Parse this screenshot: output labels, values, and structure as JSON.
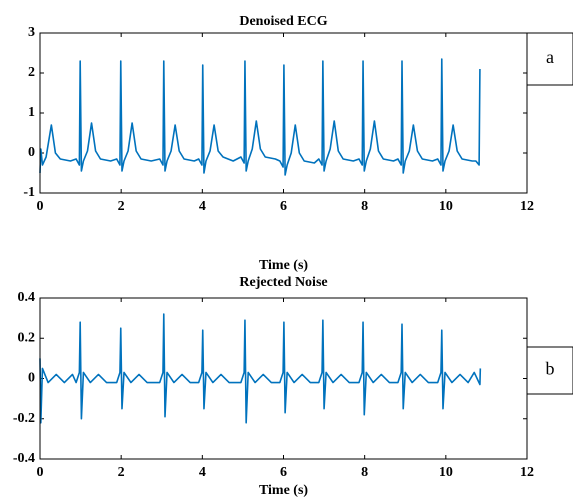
{
  "chart_data": [
    {
      "type": "line",
      "title": "Denoised ECG",
      "x_label": "Time (s)",
      "annotation": "a",
      "xlim": [
        0,
        12
      ],
      "ylim": [
        -1,
        3
      ],
      "xticks": [
        0,
        2,
        4,
        6,
        8,
        10,
        12
      ],
      "yticks": [
        -1,
        0,
        1,
        2,
        3
      ],
      "x": [
        0,
        0.02,
        0.06,
        0.15,
        0.28,
        0.38,
        0.5,
        0.75,
        0.89,
        0.97,
        0.99,
        1.02,
        1.07,
        1.17,
        1.27,
        1.37,
        1.49,
        1.74,
        1.89,
        1.97,
        1.99,
        2.02,
        2.07,
        2.17,
        2.27,
        2.37,
        2.49,
        2.74,
        2.95,
        3.03,
        3.05,
        3.08,
        3.13,
        3.23,
        3.33,
        3.43,
        3.55,
        3.8,
        3.91,
        3.99,
        4.01,
        4.04,
        4.09,
        4.19,
        4.29,
        4.39,
        4.51,
        4.76,
        4.95,
        5.03,
        5.05,
        5.08,
        5.13,
        5.23,
        5.33,
        5.43,
        5.55,
        5.8,
        5.91,
        5.99,
        6.01,
        6.04,
        6.09,
        6.19,
        6.29,
        6.39,
        6.51,
        6.76,
        6.87,
        6.95,
        6.97,
        7.0,
        7.05,
        7.15,
        7.25,
        7.35,
        7.47,
        7.72,
        7.86,
        7.94,
        7.96,
        7.99,
        8.04,
        8.14,
        8.24,
        8.34,
        8.46,
        8.71,
        8.82,
        8.9,
        8.92,
        8.95,
        9.0,
        9.1,
        9.2,
        9.3,
        9.42,
        9.67,
        9.8,
        9.88,
        9.9,
        9.93,
        9.98,
        10.08,
        10.18,
        10.28,
        10.4,
        10.65,
        10.74,
        10.82,
        10.84
      ],
      "series": [
        {
          "color": "#0072bd",
          "values": [
            -0.5,
            0.1,
            -0.3,
            -0.1,
            0.7,
            0.0,
            -0.15,
            -0.2,
            -0.15,
            -0.3,
            2.3,
            -0.45,
            -0.2,
            0.05,
            0.75,
            0.05,
            -0.15,
            -0.2,
            -0.15,
            -0.3,
            2.3,
            -0.45,
            -0.2,
            0.05,
            0.75,
            0.05,
            -0.15,
            -0.2,
            -0.15,
            -0.3,
            2.3,
            -0.45,
            -0.2,
            0.05,
            0.7,
            0.05,
            -0.15,
            -0.2,
            -0.15,
            -0.3,
            2.2,
            -0.5,
            -0.2,
            0.05,
            0.7,
            0.05,
            -0.1,
            -0.2,
            -0.1,
            -0.25,
            2.3,
            -0.45,
            -0.2,
            0.1,
            0.8,
            0.1,
            -0.1,
            -0.15,
            -0.2,
            -0.35,
            2.2,
            -0.55,
            -0.3,
            0.0,
            0.7,
            0.0,
            -0.2,
            -0.25,
            -0.15,
            -0.3,
            2.3,
            -0.45,
            -0.2,
            0.1,
            0.8,
            0.05,
            -0.15,
            -0.2,
            -0.15,
            -0.3,
            2.3,
            -0.45,
            -0.2,
            0.1,
            0.8,
            0.05,
            -0.15,
            -0.2,
            -0.15,
            -0.3,
            2.3,
            -0.5,
            -0.2,
            0.05,
            0.7,
            0.05,
            -0.15,
            -0.2,
            -0.15,
            -0.3,
            2.35,
            -0.45,
            -0.2,
            0.05,
            0.7,
            0.05,
            -0.15,
            -0.2,
            -0.2,
            -0.3,
            2.1
          ]
        }
      ]
    },
    {
      "type": "line",
      "title": "Rejected Noise",
      "x_label": "Time (s)",
      "annotation": "b",
      "xlim": [
        0,
        12
      ],
      "ylim": [
        -0.4,
        0.4
      ],
      "xticks": [
        0,
        2,
        4,
        6,
        8,
        10,
        12
      ],
      "yticks": [
        -0.4,
        -0.2,
        0,
        0.2,
        0.4
      ],
      "x": [
        0,
        0.02,
        0.06,
        0.2,
        0.4,
        0.6,
        0.8,
        0.89,
        0.97,
        0.99,
        1.02,
        1.07,
        1.24,
        1.44,
        1.64,
        1.89,
        1.97,
        1.99,
        2.02,
        2.07,
        2.24,
        2.44,
        2.64,
        2.95,
        3.03,
        3.05,
        3.08,
        3.13,
        3.3,
        3.5,
        3.7,
        3.91,
        3.99,
        4.01,
        4.04,
        4.09,
        4.26,
        4.46,
        4.66,
        4.95,
        5.03,
        5.05,
        5.08,
        5.13,
        5.3,
        5.5,
        5.7,
        5.91,
        5.99,
        6.01,
        6.04,
        6.09,
        6.26,
        6.46,
        6.66,
        6.87,
        6.95,
        6.97,
        7.0,
        7.05,
        7.22,
        7.42,
        7.62,
        7.86,
        7.94,
        7.96,
        7.99,
        8.04,
        8.21,
        8.41,
        8.61,
        8.82,
        8.9,
        8.92,
        8.95,
        9.0,
        9.17,
        9.37,
        9.57,
        9.8,
        9.88,
        9.9,
        9.93,
        9.98,
        10.15,
        10.35,
        10.55,
        10.7,
        10.84,
        10.85
      ],
      "series": [
        {
          "color": "#0072bd",
          "values": [
            0.1,
            -0.22,
            0.05,
            -0.02,
            0.02,
            -0.02,
            0.02,
            -0.02,
            0.03,
            0.28,
            -0.2,
            0.03,
            -0.02,
            0.02,
            -0.02,
            -0.02,
            0.03,
            0.25,
            -0.15,
            0.03,
            -0.02,
            0.02,
            -0.02,
            -0.02,
            0.03,
            0.32,
            -0.19,
            0.03,
            -0.02,
            0.02,
            -0.02,
            -0.02,
            0.03,
            0.24,
            -0.15,
            0.03,
            -0.02,
            0.02,
            -0.02,
            -0.02,
            0.03,
            0.29,
            -0.22,
            0.03,
            -0.02,
            0.02,
            -0.02,
            -0.02,
            0.03,
            0.28,
            -0.17,
            0.03,
            -0.02,
            0.02,
            -0.02,
            -0.02,
            0.03,
            0.29,
            -0.15,
            0.03,
            -0.02,
            0.02,
            -0.02,
            -0.02,
            0.03,
            0.28,
            -0.18,
            0.03,
            -0.02,
            0.02,
            -0.02,
            -0.02,
            0.03,
            0.27,
            -0.15,
            0.03,
            -0.02,
            0.02,
            -0.02,
            -0.02,
            0.03,
            0.24,
            -0.15,
            0.03,
            -0.02,
            0.02,
            -0.02,
            0.03,
            -0.03,
            0.05
          ]
        }
      ]
    }
  ]
}
